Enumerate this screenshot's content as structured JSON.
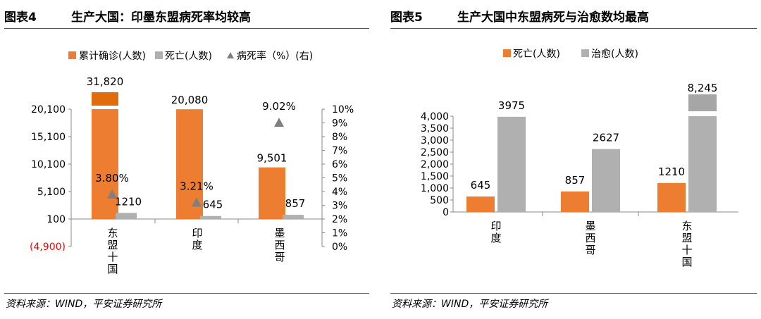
{
  "colors": {
    "orange": "#ED7D31",
    "gray": "#B0B0B0",
    "triangle": "#7F7F7F",
    "axis": "#888888",
    "red": "#FF0000",
    "axisbreak": "#E26B0A"
  },
  "figure4": {
    "label": "图表4",
    "title": "生产大国：印墨东盟病死率均较高",
    "source": "资料来源：WIND，平安证券研究所",
    "chart_data": {
      "type": "bar",
      "categories": [
        "东盟十国",
        "印度",
        "墨西哥"
      ],
      "series": [
        {
          "name": "累计确诊(人数)",
          "axis": "left",
          "values": [
            31820,
            20080,
            9501
          ],
          "labels": [
            "31,820",
            "20,080",
            "9,501"
          ]
        },
        {
          "name": "死亡(人数)",
          "axis": "left",
          "values": [
            1210,
            645,
            857
          ],
          "labels": [
            "1210",
            "645",
            "857"
          ]
        },
        {
          "name": "病死率（%）(右)",
          "axis": "right",
          "mark": "triangle",
          "values": [
            3.8,
            3.21,
            9.02
          ],
          "labels": [
            "3.80%",
            "3.21%",
            "9.02%"
          ]
        }
      ],
      "legend": [
        "累计确诊(人数)",
        "死亡(人数)",
        "病死率（%）(右)"
      ],
      "left_axis": {
        "ticks": [
          20100,
          15100,
          10100,
          5100,
          100,
          -4900
        ],
        "tick_labels": [
          "20,100",
          "15,100",
          "10,100",
          "5,100",
          "100",
          "(4,900)"
        ],
        "ylim": [
          -4900,
          20100
        ],
        "broken": true
      },
      "right_axis": {
        "ticks": [
          10,
          9,
          8,
          7,
          6,
          5,
          4,
          3,
          2,
          1,
          0
        ],
        "tick_labels": [
          "10%",
          "9%",
          "8%",
          "7%",
          "6%",
          "5%",
          "4%",
          "3%",
          "2%",
          "1%",
          "0%"
        ],
        "ylim": [
          0,
          10
        ]
      }
    }
  },
  "figure5": {
    "label": "图表5",
    "title": "生产大国中东盟病死与治愈数均最高",
    "source": "资料来源：WIND，平安证券研究所",
    "chart_data": {
      "type": "bar",
      "categories": [
        "印度",
        "墨西哥",
        "东盟十国"
      ],
      "series": [
        {
          "name": "死亡(人数)",
          "values": [
            645,
            857,
            1210
          ],
          "labels": [
            "645",
            "857",
            "1210"
          ]
        },
        {
          "name": "治愈(人数)",
          "values": [
            3975,
            2627,
            8245
          ],
          "labels": [
            "3975",
            "2627",
            "8,245"
          ]
        }
      ],
      "legend": [
        "死亡(人数)",
        "治愈(人数)"
      ],
      "y_axis": {
        "ticks": [
          4000,
          3500,
          3000,
          2500,
          2000,
          1500,
          1000,
          500,
          0
        ],
        "tick_labels": [
          "4,000",
          "3,500",
          "3,000",
          "2,500",
          "2,000",
          "1,500",
          "1,000",
          "500",
          "0"
        ],
        "ylim": [
          0,
          4000
        ],
        "broken": true
      }
    }
  }
}
